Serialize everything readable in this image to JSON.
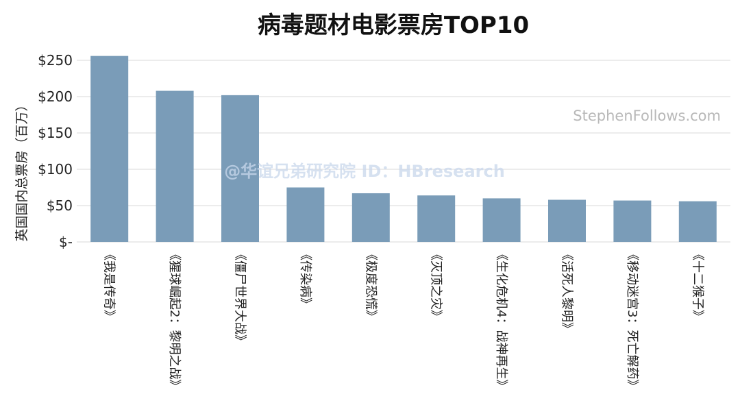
{
  "watermark": "@华谊兄弟研究院 ID：HBresearch",
  "credit": "StephenFollows.com",
  "chart_data": {
    "type": "bar",
    "title": "病毒题材电影票房TOP10",
    "xlabel": "",
    "ylabel": "英国国内总票房（百万）",
    "ylim": [
      0,
      250
    ],
    "yticks": [
      0,
      50,
      100,
      150,
      200,
      250
    ],
    "ytick_labels": [
      "$-",
      "$50",
      "$100",
      "$150",
      "$200",
      "$250"
    ],
    "grid": true,
    "bar_color": "#7a9cb8",
    "categories": [
      "《我是传奇》",
      "《猩球崛起2：黎明之战》",
      "《僵尸世界大战》",
      "《传染病》",
      "《极度恐慌》",
      "《灭顶之灾》",
      "《生化危机4：战神再生》",
      "《活死人黎明》",
      "《移动迷宫3：死亡解药》",
      "《十二猴子》"
    ],
    "values": [
      256,
      208,
      202,
      75,
      67,
      64,
      60,
      58,
      57,
      56
    ]
  }
}
